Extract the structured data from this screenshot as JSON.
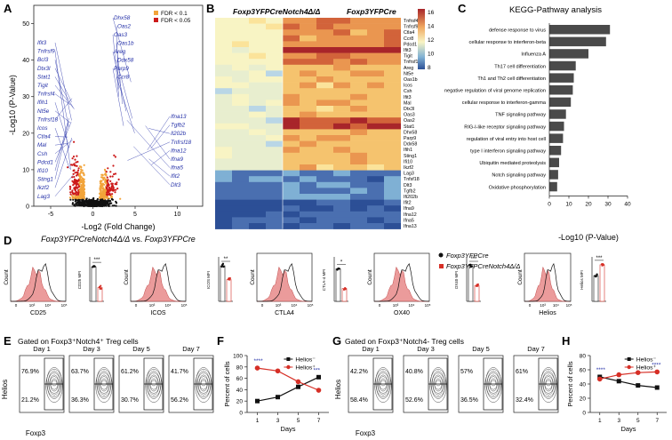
{
  "panel_letters": [
    "A",
    "B",
    "C",
    "D",
    "E",
    "F",
    "G",
    "H"
  ],
  "colors": {
    "fdr01": "#f2a43a",
    "fdr005": "#cc1a1a",
    "ns": "#111111",
    "gene_label": "#2430a8",
    "kegg_bar": "#4a4a4a",
    "helios_neg": "#111111",
    "helios_pos": "#d62f26",
    "fill_pink": "#e88a8a"
  },
  "panelA": {
    "ylabel": "-Log10 (P-Value)",
    "xlabel": "-Log2 (Fold Change)",
    "subtitle_left": "Foxp3YFPCreNotch4Δ/Δ",
    "subtitle_vs": " vs. ",
    "subtitle_right": "Foxp3YFPCre",
    "legend": [
      "FDR < 0.1",
      "FDR < 0.05"
    ],
    "x_ticks": [
      "-5",
      "0",
      "5",
      "10"
    ],
    "y_ticks": [
      "0",
      "10",
      "20",
      "30",
      "40",
      "50"
    ],
    "left_genes": [
      "Ifit3",
      "Tnfrsf9",
      "Bcl3",
      "Dtx3l",
      "Stat1",
      "Tigit",
      "Tnfrsf4",
      "Ifih1",
      "Nt5e",
      "Tnfrsf18",
      "Icos",
      "Ctla4",
      "Mal",
      "Csh",
      "Pdcd1",
      "Ifi10",
      "Sting1",
      "Ikzf2",
      "Lag3"
    ],
    "top_genes": [
      "Dhx58",
      "Oas2",
      "Oas3",
      "Oas1b",
      "Areg",
      "Ddx58",
      "Parp9",
      "Ccr8"
    ],
    "right_genes": [
      "Ifna13",
      "Tgfb2",
      "Il202b",
      "Tnfrsf18",
      "Ifna12",
      "Ifna9",
      "Ifna5",
      "Ifit2",
      "Dlt3"
    ]
  },
  "panelB": {
    "header_left": "Foxp3YFPCreNotch4Δ/Δ",
    "header_right": "Foxp3YFPCre",
    "colorbar_ticks": [
      "16",
      "14",
      "12",
      "10",
      "8"
    ],
    "genes": [
      "Tnfrsf4",
      "Tnfrsf9",
      "Ctla4",
      "Ccr8",
      "Pdcd1",
      "Ifit3",
      "Tigit",
      "Tnfrsf18",
      "Areg",
      "Nt5e",
      "Oas1b",
      "Icos",
      "Csh",
      "Ifit3",
      "Mal",
      "Dtx3l",
      "Oas3",
      "Oas2",
      "Stat1",
      "Dhx58",
      "Parp9",
      "Ddx58",
      "Ifih1",
      "Sting1",
      "Ifi10",
      "Ikzf2",
      "Lag3",
      "Tnfsf18",
      "Dlt3",
      "Tgfb2",
      "Ifi202b",
      "Ifit2",
      "Ifna9",
      "Ifna12",
      "Ifna5",
      "Ifna13"
    ]
  },
  "panelC": {
    "title": "KEGG-Pathway analysis",
    "xlabel": "-Log10 (P-Value)",
    "x_ticks": [
      "0",
      "10",
      "20",
      "30",
      "40"
    ],
    "pathways": [
      {
        "name": "defense response to virus",
        "value": 31
      },
      {
        "name": "cellular response to interferon-beta",
        "value": 29
      },
      {
        "name": "Influenza A",
        "value": 20
      },
      {
        "name": "Th17 cell differentiation",
        "value": 13.5
      },
      {
        "name": "Th1 and Th2 cell differentiation",
        "value": 12.5
      },
      {
        "name": "negative regulation of viral genome replication",
        "value": 12
      },
      {
        "name": "cellular response to interferon-gamma",
        "value": 11
      },
      {
        "name": "TNF signaling pathway",
        "value": 8.5
      },
      {
        "name": "RIG-I-like receptor signaling pathway",
        "value": 7.5
      },
      {
        "name": "regulation of viral entry into host cell",
        "value": 7
      },
      {
        "name": "type I interferon signaling pathway",
        "value": 6
      },
      {
        "name": "Ubiquitin mediated proteolysis",
        "value": 5
      },
      {
        "name": "Notch signaling pathway",
        "value": 4.5
      },
      {
        "name": "Oxidative phosphorylation",
        "value": 4
      }
    ]
  },
  "panelD": {
    "legend": [
      "Foxp3YFPCre",
      "Foxp3YFPCreNotch4Δ/Δ"
    ],
    "markers": [
      {
        "hist": "CD25",
        "mfi": "CD25 MFI",
        "sig": "***",
        "wt": 3.5,
        "ko": 1.4
      },
      {
        "hist": "ICOS",
        "mfi": "ICOS MFI",
        "sig": "**",
        "wt": 3.6,
        "ko": 2.2
      },
      {
        "hist": "CTLA4",
        "mfi": "CTLA-4 MFI",
        "sig": "*",
        "wt": 3.3,
        "ko": 1.3
      },
      {
        "hist": "OX40",
        "mfi": "OX40 MFI",
        "sig": "***",
        "wt": 3.6,
        "ko": 1.6
      },
      {
        "hist": "Helios",
        "mfi": "Helios MFI",
        "sig": "***",
        "wt": 2.6,
        "ko": 3.7
      }
    ],
    "count_label": "Count",
    "hist_ticks": [
      "0",
      "10³",
      "10⁴",
      "10⁵"
    ]
  },
  "panelE": {
    "title": "Gated on Foxp3⁺Notch4⁺ Treg cells",
    "ylabel": "Helios",
    "xlabel": "Foxp3",
    "plots": [
      {
        "day": "Day 1",
        "top": "76.9%",
        "bottom": "21.2%"
      },
      {
        "day": "Day 3",
        "top": "63.7%",
        "bottom": "36.3%"
      },
      {
        "day": "Day 5",
        "top": "61.2%",
        "bottom": "30.7%"
      },
      {
        "day": "Day 7",
        "top": "41.7%",
        "bottom": "56.2%"
      }
    ]
  },
  "panelG": {
    "title": "Gated on Foxp3⁺Notch4- Treg cells",
    "ylabel": "Helios",
    "xlabel": "Foxp3",
    "plots": [
      {
        "day": "Day 1",
        "top": "42.2%",
        "bottom": "58.4%"
      },
      {
        "day": "Day 3",
        "top": "40.8%",
        "bottom": "52.6%"
      },
      {
        "day": "Day 5",
        "top": "57%",
        "bottom": "36.5%"
      },
      {
        "day": "Day 7",
        "top": "61%",
        "bottom": "32.4%"
      }
    ]
  },
  "chart_data": [
    {
      "type": "line",
      "panel": "F",
      "xlabel": "Days",
      "ylabel": "Percent of cells",
      "x": [
        1,
        3,
        5,
        7
      ],
      "ylim": [
        0,
        100
      ],
      "y_ticks": [
        "0",
        "20",
        "40",
        "60",
        "80",
        "100"
      ],
      "sig": [
        "****",
        "***"
      ],
      "series": [
        {
          "name": "Helios⁻",
          "values": [
            20,
            27,
            45,
            62
          ],
          "color": "#111111"
        },
        {
          "name": "Helios⁺",
          "values": [
            78,
            73,
            54,
            39
          ],
          "color": "#d62f26"
        }
      ]
    },
    {
      "type": "line",
      "panel": "H",
      "xlabel": "Days",
      "ylabel": "Percent of cells",
      "x": [
        1,
        3,
        5,
        7
      ],
      "ylim": [
        0,
        80
      ],
      "y_ticks": [
        "0",
        "20",
        "40",
        "60",
        "80"
      ],
      "sig": [
        "****",
        "****"
      ],
      "series": [
        {
          "name": "Helios⁻",
          "values": [
            50,
            44,
            38,
            35
          ],
          "color": "#111111"
        },
        {
          "name": "Helios⁺",
          "values": [
            47,
            53,
            56,
            57
          ],
          "color": "#d62f26"
        }
      ]
    }
  ]
}
